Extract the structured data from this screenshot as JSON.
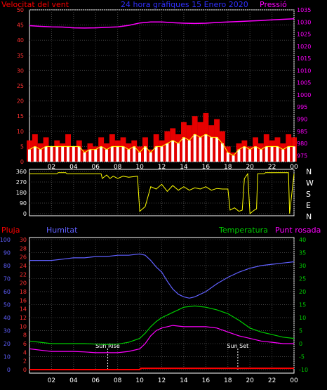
{
  "title": "24 hora gràfiques 15 Enero 2020",
  "colors": {
    "wind": "#ff0000",
    "gust": "#ffff00",
    "avg": "#ffffff",
    "pressure": "#ff00ff",
    "direction": "#ffff00",
    "rain": "#ff0000",
    "humidity": "#6060ff",
    "temperature": "#00cc00",
    "dewpoint": "#ff00ff",
    "axis": "#ffffff",
    "grid": "#404040"
  },
  "chart_data": [
    {
      "type": "line",
      "name": "wind_pressure",
      "left_label": "Velocitat del vent",
      "right_label": "Pressió",
      "x_ticks": [
        "02",
        "04",
        "06",
        "08",
        "10",
        "12",
        "14",
        "16",
        "18",
        "20",
        "22",
        "00"
      ],
      "y_left_ticks": [
        0,
        5,
        10,
        15,
        20,
        25,
        30,
        35,
        40,
        45,
        50
      ],
      "y_right_ticks": [
        975,
        980,
        985,
        990,
        995,
        1000,
        1005,
        1010,
        1015,
        1020,
        1025,
        1030,
        1035
      ],
      "ylim_left": [
        0,
        50
      ],
      "ylim_right": [
        972.5,
        1035
      ],
      "x_range_hours": [
        0,
        24
      ],
      "series": [
        {
          "key": "pressure",
          "axis": "right",
          "x": [
            0,
            1,
            2,
            3,
            4,
            5,
            6,
            7,
            8,
            9,
            10,
            11,
            12,
            13,
            14,
            15,
            16,
            17,
            18,
            19,
            20,
            21,
            22,
            23,
            24
          ],
          "values": [
            1028.5,
            1028.2,
            1028.0,
            1027.9,
            1027.6,
            1027.5,
            1027.6,
            1027.8,
            1028.0,
            1028.6,
            1029.6,
            1030.0,
            1030.0,
            1029.7,
            1029.5,
            1029.4,
            1029.5,
            1029.8,
            1030.0,
            1030.2,
            1030.4,
            1030.6,
            1030.9,
            1031.1,
            1031.3
          ]
        },
        {
          "key": "wind_max",
          "axis": "left",
          "x": [
            0,
            0.5,
            1,
            1.5,
            2,
            2.5,
            3,
            3.5,
            4,
            4.5,
            5,
            5.5,
            6,
            6.5,
            7,
            7.5,
            8,
            8.5,
            9,
            9.5,
            10,
            10.5,
            11,
            11.5,
            12,
            12.5,
            13,
            13.5,
            14,
            14.5,
            15,
            15.5,
            16,
            16.5,
            17,
            17.5,
            18,
            18.5,
            19,
            19.5,
            20,
            20.5,
            21,
            21.5,
            22,
            22.5,
            23,
            23.5,
            24
          ],
          "values": [
            7,
            9,
            6,
            8,
            5,
            7,
            6,
            9,
            5,
            7,
            4,
            6,
            5,
            8,
            6,
            9,
            7,
            8,
            6,
            7,
            5,
            8,
            4,
            9,
            7,
            10,
            11,
            9,
            13,
            12,
            15,
            13,
            16,
            12,
            14,
            10,
            5,
            3,
            6,
            7,
            5,
            8,
            6,
            9,
            7,
            8,
            6,
            9,
            8
          ]
        },
        {
          "key": "wind_avg",
          "axis": "left",
          "x": [
            0,
            0.5,
            1,
            1.5,
            2,
            2.5,
            3,
            3.5,
            4,
            4.5,
            5,
            5.5,
            6,
            6.5,
            7,
            7.5,
            8,
            8.5,
            9,
            9.5,
            10,
            10.5,
            11,
            11.5,
            12,
            12.5,
            13,
            13.5,
            14,
            14.5,
            15,
            15.5,
            16,
            16.5,
            17,
            17.5,
            18,
            18.5,
            19,
            19.5,
            20,
            20.5,
            21,
            21.5,
            22,
            22.5,
            23,
            23.5,
            24
          ],
          "values": [
            4,
            5,
            4,
            5,
            5,
            5,
            5,
            5,
            5,
            5,
            3,
            4,
            4,
            5,
            4,
            5,
            5,
            5,
            4,
            5,
            3,
            5,
            3,
            5,
            5,
            6,
            7,
            6,
            8,
            7,
            9,
            8,
            9,
            8,
            8,
            6,
            3,
            2,
            4,
            5,
            4,
            5,
            4,
            5,
            5,
            5,
            4,
            5,
            5
          ]
        }
      ]
    },
    {
      "type": "line",
      "name": "wind_direction",
      "right_axis_letters": [
        "N",
        "W",
        "S",
        "E",
        "N"
      ],
      "y_left_ticks": [
        0,
        90,
        180,
        270,
        360
      ],
      "ylim": [
        0,
        360
      ],
      "x_range_hours": [
        0,
        24
      ],
      "series": [
        {
          "key": "direction",
          "x": [
            0,
            0.5,
            2.5,
            2.6,
            3.3,
            3.4,
            6.5,
            6.6,
            7,
            7.3,
            7.6,
            8,
            8.5,
            9,
            9.8,
            10,
            10.5,
            11,
            11.5,
            12,
            12.5,
            13,
            13.5,
            14,
            14.5,
            15,
            15.5,
            16,
            16.5,
            17,
            17.5,
            18,
            18.2,
            18.6,
            19.0,
            19.3,
            19.5,
            19.8,
            20.0,
            20.4,
            20.6,
            20.7,
            21.3,
            21.4,
            22.0,
            23.5,
            23.6,
            24
          ],
          "values": [
            340,
            340,
            340,
            350,
            350,
            340,
            340,
            300,
            330,
            300,
            320,
            300,
            320,
            310,
            320,
            20,
            60,
            230,
            210,
            250,
            190,
            240,
            200,
            230,
            200,
            220,
            210,
            230,
            200,
            215,
            210,
            210,
            30,
            50,
            20,
            30,
            300,
            340,
            0,
            30,
            40,
            340,
            340,
            350,
            350,
            350,
            0,
            340
          ]
        }
      ]
    },
    {
      "type": "line",
      "name": "rain_humidity_temp",
      "labels": {
        "rain": "Pluja",
        "humidity": "Humitat",
        "temperature": "Temperatura",
        "dewpoint": "Punt rosada"
      },
      "annotations": [
        {
          "text": "Sun Rise",
          "hour": 7.1
        },
        {
          "text": "Sun Set",
          "hour": 18.9
        }
      ],
      "x_ticks": [
        "02",
        "04",
        "06",
        "08",
        "10",
        "12",
        "14",
        "16",
        "18",
        "20",
        "22",
        "00"
      ],
      "y_rain_ticks": [
        0,
        2,
        4,
        6,
        8,
        10,
        12,
        14,
        16,
        18,
        20,
        22,
        24,
        26,
        28,
        30
      ],
      "y_hum_ticks": [
        0,
        10,
        20,
        30,
        40,
        50,
        60,
        70,
        80,
        90,
        100
      ],
      "y_temp_ticks": [
        -10,
        -5,
        0,
        5,
        10,
        15,
        20,
        25,
        30,
        35,
        40
      ],
      "ylim_hum": [
        0,
        100
      ],
      "ylim_temp": [
        -10,
        40
      ],
      "ylim_rain": [
        0,
        30
      ],
      "x_range_hours": [
        0,
        24
      ],
      "series": [
        {
          "key": "humidity",
          "axis": "hum",
          "x": [
            0,
            1,
            2,
            3,
            4,
            5,
            6,
            7,
            8,
            9,
            10,
            10.5,
            11,
            11.5,
            12,
            12.5,
            13,
            13.5,
            14,
            14.5,
            15,
            16,
            17,
            18,
            19,
            20,
            21,
            22,
            23,
            24
          ],
          "values": [
            84,
            84,
            84,
            85,
            86,
            86,
            87,
            87,
            88,
            88,
            89,
            88,
            84,
            79,
            75,
            68,
            62,
            58,
            56,
            55,
            56,
            60,
            66,
            71,
            75,
            78,
            80,
            81,
            82,
            83
          ]
        },
        {
          "key": "temperature",
          "axis": "temp",
          "x": [
            0,
            1,
            2,
            3,
            4,
            5,
            6,
            7,
            8,
            9,
            10,
            10.5,
            11,
            11.5,
            12,
            12.5,
            13,
            13.5,
            14,
            15,
            16,
            17,
            18,
            19,
            20,
            21,
            22,
            23,
            24
          ],
          "values": [
            1,
            0.5,
            0,
            0,
            0,
            0,
            -0.2,
            -0.3,
            -0.2,
            0.5,
            2,
            4,
            6.5,
            8.5,
            10,
            11,
            12,
            13,
            14,
            14.5,
            14,
            13,
            11.5,
            9,
            6,
            4.5,
            3.5,
            2.5,
            2
          ]
        },
        {
          "key": "dewpoint",
          "axis": "temp",
          "x": [
            0,
            1,
            2,
            3,
            4,
            5,
            6,
            7,
            8,
            9,
            10,
            10.5,
            11,
            11.5,
            12,
            12.5,
            13,
            14,
            15,
            16,
            17,
            18,
            19,
            20,
            21,
            22,
            23,
            24
          ],
          "values": [
            -2,
            -2.5,
            -3,
            -3,
            -3,
            -3.2,
            -3.5,
            -3.5,
            -3.5,
            -3,
            -2,
            0,
            3,
            5,
            6,
            6.5,
            7,
            6.5,
            6.5,
            6.5,
            6,
            4.5,
            3,
            2,
            1,
            0.5,
            0,
            0
          ]
        },
        {
          "key": "rain",
          "axis": "rain",
          "x": [
            0,
            10,
            10.1,
            24
          ],
          "values": [
            0,
            0,
            0.3,
            0.3
          ]
        }
      ]
    }
  ]
}
